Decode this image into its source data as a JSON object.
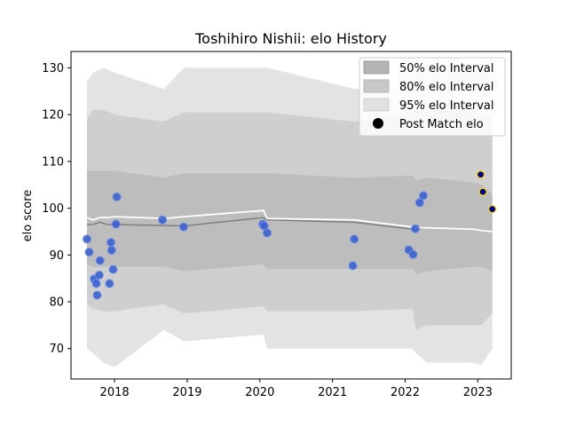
{
  "chart_data": {
    "type": "area",
    "title": "Toshihiro Nishii: elo History",
    "xlabel": "",
    "ylabel": "elo score",
    "xlim": [
      2017.4,
      2023.46
    ],
    "ylim": [
      63.5,
      133.5
    ],
    "x_ticks": [
      2018,
      2019,
      2020,
      2021,
      2022,
      2023
    ],
    "x_tick_labels": [
      "2018",
      "2019",
      "2020",
      "2021",
      "2022",
      "2023"
    ],
    "y_ticks": [
      70,
      80,
      90,
      100,
      110,
      120,
      130
    ],
    "y_tick_labels": [
      "70",
      "80",
      "90",
      "100",
      "110",
      "120",
      "130"
    ],
    "legend": {
      "placement": "top-right",
      "entries": [
        "50% elo Interval",
        "80% elo Interval",
        "95% elo Interval",
        "Post Match elo"
      ]
    },
    "grid": false,
    "band_x": [
      2017.62,
      2017.7,
      2017.85,
      2018.0,
      2018.68,
      2018.95,
      2020.05,
      2020.1,
      2021.3,
      2022.1,
      2022.15,
      2022.3,
      2022.95,
      2023.05,
      2023.2
    ],
    "band_95_upper": [
      127,
      129,
      130,
      129,
      125.5,
      130,
      130,
      130,
      125.5,
      125.5,
      131,
      131,
      131,
      131,
      130
    ],
    "band_95_lower": [
      70,
      69,
      67,
      66,
      74,
      71.5,
      73,
      70,
      70,
      70,
      69,
      67,
      67,
      66.5,
      70
    ],
    "band_80_upper": [
      119,
      121,
      121,
      120,
      118.5,
      120.5,
      120.5,
      120.5,
      118.5,
      120,
      120.5,
      121,
      120.5,
      119.5,
      119
    ],
    "band_80_lower": [
      79.5,
      78.5,
      78,
      78,
      79.5,
      77.5,
      79,
      78,
      78,
      78.5,
      74,
      75,
      75,
      75,
      77.5
    ],
    "band_50_upper": [
      108,
      108,
      108,
      108,
      106.5,
      107.5,
      107.5,
      107.5,
      106.5,
      107,
      106,
      106.5,
      105.5,
      105,
      103
    ],
    "band_50_lower": [
      88,
      87.5,
      87.5,
      87.5,
      87.5,
      86.5,
      88,
      87,
      87,
      87,
      86,
      86.5,
      87.5,
      87.5,
      86.5
    ],
    "series": [
      {
        "x": [
          2017.62,
          2017.7,
          2017.8,
          2017.9,
          2018.0,
          2018.7,
          2018.95,
          2020.05,
          2020.1,
          2021.3,
          2022.1,
          2022.15,
          2022.3,
          2022.95,
          2023.05,
          2023.2
        ],
        "values": [
          96.5,
          96.5,
          97,
          96.5,
          96.5,
          96.3,
          96.2,
          98,
          97.5,
          97,
          95.5,
          95.5,
          95.8,
          95.5,
          95.2,
          95
        ]
      },
      {
        "x": [
          2017.62,
          2017.7,
          2017.8,
          2017.9,
          2018.0,
          2018.7,
          2018.95,
          2020.05,
          2020.1,
          2021.3,
          2022.1,
          2022.15,
          2022.3,
          2022.95,
          2023.05,
          2023.2
        ],
        "values": [
          98,
          97.5,
          98,
          98,
          98.2,
          97.8,
          98.2,
          99.5,
          97.8,
          97.5,
          96,
          95.8,
          95.8,
          95.5,
          95.2,
          95
        ]
      }
    ],
    "points": [
      {
        "x": 2017.62,
        "y": 93.4,
        "type": "historical"
      },
      {
        "x": 2017.65,
        "y": 90.6,
        "type": "historical"
      },
      {
        "x": 2017.72,
        "y": 84.9,
        "type": "historical"
      },
      {
        "x": 2017.75,
        "y": 83.9,
        "type": "historical"
      },
      {
        "x": 2017.76,
        "y": 81.4,
        "type": "historical"
      },
      {
        "x": 2017.79,
        "y": 85.7,
        "type": "historical"
      },
      {
        "x": 2017.8,
        "y": 88.8,
        "type": "historical"
      },
      {
        "x": 2017.93,
        "y": 83.9,
        "type": "historical"
      },
      {
        "x": 2017.95,
        "y": 92.7,
        "type": "historical"
      },
      {
        "x": 2017.96,
        "y": 91.0,
        "type": "historical"
      },
      {
        "x": 2017.98,
        "y": 86.9,
        "type": "historical"
      },
      {
        "x": 2018.02,
        "y": 96.6,
        "type": "historical"
      },
      {
        "x": 2018.03,
        "y": 102.4,
        "type": "historical"
      },
      {
        "x": 2018.66,
        "y": 97.5,
        "type": "historical"
      },
      {
        "x": 2018.95,
        "y": 96.0,
        "type": "historical"
      },
      {
        "x": 2020.04,
        "y": 96.6,
        "type": "historical"
      },
      {
        "x": 2020.06,
        "y": 96.2,
        "type": "historical"
      },
      {
        "x": 2020.1,
        "y": 94.7,
        "type": "historical"
      },
      {
        "x": 2021.28,
        "y": 87.7,
        "type": "historical"
      },
      {
        "x": 2021.3,
        "y": 93.4,
        "type": "historical"
      },
      {
        "x": 2022.05,
        "y": 91.1,
        "type": "historical"
      },
      {
        "x": 2022.11,
        "y": 90.1,
        "type": "historical"
      },
      {
        "x": 2022.14,
        "y": 95.6,
        "type": "historical"
      },
      {
        "x": 2022.2,
        "y": 101.2,
        "type": "historical"
      },
      {
        "x": 2022.25,
        "y": 102.7,
        "type": "historical"
      },
      {
        "x": 2023.04,
        "y": 107.2,
        "type": "recent"
      },
      {
        "x": 2023.07,
        "y": 103.5,
        "type": "recent"
      },
      {
        "x": 2023.2,
        "y": 99.8,
        "type": "recent"
      }
    ]
  }
}
